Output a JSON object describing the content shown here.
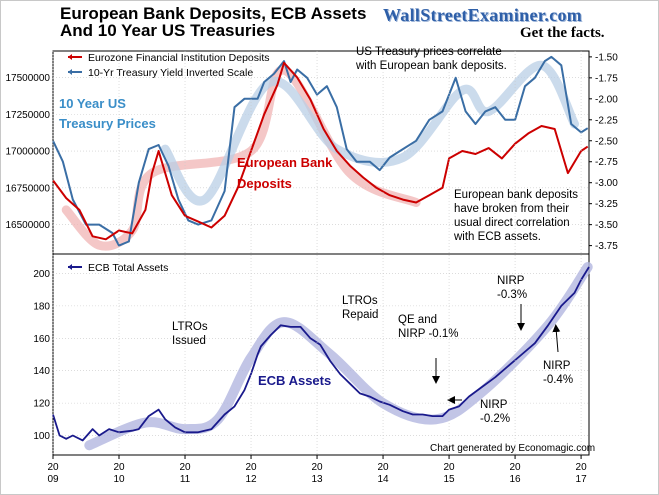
{
  "title_line1": "European Bank Deposits, ECB Assets",
  "title_line2": "And 10 Year US Treasuries",
  "site_name": "WallStreetExaminer.com",
  "tagline": "Get the facts.",
  "footer": "Chart generated by Economagic.com",
  "colors": {
    "deposits": "#cc0000",
    "deposits_trend": "#f0b4b4",
    "treasury": "#3a6ea5",
    "treasury_trend": "#b9cfe6",
    "ecb": "#1a1a8c",
    "ecb_trend": "#b3b6e0",
    "grid": "#c8c8c8"
  },
  "chart_data": [
    {
      "type": "line",
      "series": [
        {
          "name": "Eurozone Financial Institution Deposits",
          "axis": "left",
          "points": [
            [
              2009.0,
              16800000
            ],
            [
              2009.2,
              16680000
            ],
            [
              2009.4,
              16600000
            ],
            [
              2009.6,
              16420000
            ],
            [
              2009.8,
              16400000
            ],
            [
              2010.0,
              16460000
            ],
            [
              2010.2,
              16440000
            ],
            [
              2010.4,
              16600000
            ],
            [
              2010.5,
              16850000
            ],
            [
              2010.6,
              17000000
            ],
            [
              2010.8,
              16700000
            ],
            [
              2011.0,
              16560000
            ],
            [
              2011.2,
              16520000
            ],
            [
              2011.4,
              16480000
            ],
            [
              2011.6,
              16560000
            ],
            [
              2011.8,
              16750000
            ],
            [
              2012.0,
              17000000
            ],
            [
              2012.2,
              17250000
            ],
            [
              2012.4,
              17450000
            ],
            [
              2012.5,
              17600000
            ],
            [
              2012.7,
              17500000
            ],
            [
              2012.9,
              17350000
            ],
            [
              2013.1,
              17150000
            ],
            [
              2013.3,
              17000000
            ],
            [
              2013.5,
              16900000
            ],
            [
              2013.7,
              16820000
            ],
            [
              2013.9,
              16750000
            ],
            [
              2014.1,
              16700000
            ],
            [
              2014.3,
              16670000
            ],
            [
              2014.5,
              16650000
            ],
            [
              2014.7,
              16700000
            ],
            [
              2014.9,
              16750000
            ],
            [
              2015.0,
              16950000
            ],
            [
              2015.2,
              17000000
            ],
            [
              2015.4,
              16980000
            ],
            [
              2015.6,
              17020000
            ],
            [
              2015.8,
              16950000
            ],
            [
              2016.0,
              17050000
            ],
            [
              2016.2,
              17120000
            ],
            [
              2016.4,
              17170000
            ],
            [
              2016.6,
              17150000
            ],
            [
              2016.8,
              16850000
            ],
            [
              2017.0,
              17000000
            ],
            [
              2017.1,
              17030000
            ]
          ],
          "trend": [
            [
              2009.2,
              16600000
            ],
            [
              2009.7,
              16360000
            ],
            [
              2010.2,
              16460000
            ],
            [
              2010.5,
              16850000
            ],
            [
              2012.0,
              17000000
            ],
            [
              2012.5,
              17550000
            ],
            [
              2013.5,
              16850000
            ],
            [
              2014.5,
              16650000
            ]
          ]
        },
        {
          "name": "10-Yr Treasury Yield Inverted Scale",
          "axis": "right",
          "points": [
            [
              2009.0,
              -2.5
            ],
            [
              2009.15,
              -2.75
            ],
            [
              2009.3,
              -3.2
            ],
            [
              2009.5,
              -3.5
            ],
            [
              2009.7,
              -3.5
            ],
            [
              2009.9,
              -3.6
            ],
            [
              2010.0,
              -3.75
            ],
            [
              2010.15,
              -3.7
            ],
            [
              2010.3,
              -3.0
            ],
            [
              2010.45,
              -2.6
            ],
            [
              2010.6,
              -2.55
            ],
            [
              2010.75,
              -2.8
            ],
            [
              2010.9,
              -3.2
            ],
            [
              2011.05,
              -3.45
            ],
            [
              2011.2,
              -3.5
            ],
            [
              2011.4,
              -3.45
            ],
            [
              2011.6,
              -3.1
            ],
            [
              2011.75,
              -2.1
            ],
            [
              2011.9,
              -2.0
            ],
            [
              2012.1,
              -2.0
            ],
            [
              2012.2,
              -1.8
            ],
            [
              2012.35,
              -1.7
            ],
            [
              2012.5,
              -1.55
            ],
            [
              2012.6,
              -1.8
            ],
            [
              2012.7,
              -1.65
            ],
            [
              2012.85,
              -1.75
            ],
            [
              2013.0,
              -1.95
            ],
            [
              2013.15,
              -1.85
            ],
            [
              2013.3,
              -2.1
            ],
            [
              2013.45,
              -2.6
            ],
            [
              2013.6,
              -2.75
            ],
            [
              2013.8,
              -2.75
            ],
            [
              2013.95,
              -2.85
            ],
            [
              2014.1,
              -2.7
            ],
            [
              2014.3,
              -2.6
            ],
            [
              2014.5,
              -2.5
            ],
            [
              2014.7,
              -2.25
            ],
            [
              2014.9,
              -2.15
            ],
            [
              2015.0,
              -1.95
            ],
            [
              2015.1,
              -1.75
            ],
            [
              2015.25,
              -2.15
            ],
            [
              2015.4,
              -2.3
            ],
            [
              2015.55,
              -2.15
            ],
            [
              2015.7,
              -2.1
            ],
            [
              2015.85,
              -2.25
            ],
            [
              2016.0,
              -2.25
            ],
            [
              2016.15,
              -1.85
            ],
            [
              2016.3,
              -1.75
            ],
            [
              2016.45,
              -1.55
            ],
            [
              2016.55,
              -1.5
            ],
            [
              2016.7,
              -1.6
            ],
            [
              2016.85,
              -2.3
            ],
            [
              2017.0,
              -2.4
            ],
            [
              2017.1,
              -2.35
            ]
          ],
          "trend": [
            [
              2010.7,
              -2.6
            ],
            [
              2011.3,
              -3.2
            ],
            [
              2012.3,
              -1.8
            ],
            [
              2013.3,
              -2.6
            ],
            [
              2014.3,
              -2.7
            ],
            [
              2015.2,
              -1.9
            ],
            [
              2015.6,
              -2.15
            ],
            [
              2016.4,
              -1.6
            ],
            [
              2016.9,
              -2.3
            ]
          ]
        }
      ],
      "y_left_ticks": [
        "16500000",
        "16750000",
        "17000000",
        "17250000",
        "17500000"
      ],
      "y_left_range": [
        16300000,
        17680000
      ],
      "y_right_ticks": [
        "-1.50",
        "-1.75",
        "-2.00",
        "-2.25",
        "-2.50",
        "-2.75",
        "-3.00",
        "-3.25",
        "-3.50",
        "-3.75"
      ],
      "y_right_range": [
        -3.85,
        -1.43
      ],
      "legend": "top-left"
    },
    {
      "type": "line",
      "series": [
        {
          "name": "ECB Total Assets",
          "axis": "left",
          "points": [
            [
              2009.0,
              113
            ],
            [
              2009.1,
              100
            ],
            [
              2009.2,
              98
            ],
            [
              2009.3,
              100
            ],
            [
              2009.45,
              97
            ],
            [
              2009.6,
              104
            ],
            [
              2009.7,
              100
            ],
            [
              2009.85,
              104
            ],
            [
              2010.0,
              102
            ],
            [
              2010.2,
              103
            ],
            [
              2010.3,
              104
            ],
            [
              2010.45,
              112
            ],
            [
              2010.6,
              116
            ],
            [
              2010.7,
              110
            ],
            [
              2010.85,
              105
            ],
            [
              2011.0,
              102
            ],
            [
              2011.2,
              102
            ],
            [
              2011.4,
              104
            ],
            [
              2011.6,
              113
            ],
            [
              2011.75,
              118
            ],
            [
              2011.9,
              128
            ],
            [
              2012.0,
              138
            ],
            [
              2012.1,
              150
            ],
            [
              2012.15,
              155
            ],
            [
              2012.3,
              162
            ],
            [
              2012.45,
              168
            ],
            [
              2012.6,
              167
            ],
            [
              2012.75,
              167
            ],
            [
              2012.9,
              160
            ],
            [
              2013.05,
              156
            ],
            [
              2013.2,
              146
            ],
            [
              2013.35,
              138
            ],
            [
              2013.5,
              132
            ],
            [
              2013.65,
              126
            ],
            [
              2013.8,
              124
            ],
            [
              2013.95,
              121
            ],
            [
              2014.1,
              119
            ],
            [
              2014.3,
              115
            ],
            [
              2014.45,
              113
            ],
            [
              2014.6,
              113
            ],
            [
              2014.75,
              112
            ],
            [
              2014.9,
              112
            ],
            [
              2015.0,
              116
            ],
            [
              2015.15,
              118
            ],
            [
              2015.3,
              124
            ],
            [
              2015.5,
              130
            ],
            [
              2015.7,
              136
            ],
            [
              2015.9,
              143
            ],
            [
              2016.1,
              150
            ],
            [
              2016.3,
              157
            ],
            [
              2016.5,
              168
            ],
            [
              2016.7,
              180
            ],
            [
              2016.9,
              188
            ],
            [
              2017.0,
              196
            ],
            [
              2017.12,
              204
            ]
          ],
          "trend": [
            [
              2009.55,
              94
            ],
            [
              2010.4,
              108
            ],
            [
              2011.0,
              104
            ],
            [
              2011.5,
              110
            ],
            [
              2012.0,
              148
            ],
            [
              2012.5,
              170
            ],
            [
              2013.2,
              150
            ],
            [
              2014.0,
              120
            ],
            [
              2014.8,
              110
            ],
            [
              2015.5,
              127
            ],
            [
              2016.5,
              168
            ],
            [
              2017.1,
              204
            ]
          ]
        }
      ],
      "y_ticks": [
        "100",
        "120",
        "140",
        "160",
        "180",
        "200"
      ],
      "y_range": [
        88,
        212
      ],
      "legend": "top-left"
    }
  ],
  "x_axis": {
    "min": 2009,
    "max": 2017.12,
    "ticks": [
      {
        "value": 2009,
        "l1": "20",
        "l2": "09"
      },
      {
        "value": 2010,
        "l1": "20",
        "l2": "10"
      },
      {
        "value": 2011,
        "l1": "20",
        "l2": "11"
      },
      {
        "value": 2012,
        "l1": "20",
        "l2": "12"
      },
      {
        "value": 2013,
        "l1": "20",
        "l2": "13"
      },
      {
        "value": 2014,
        "l1": "20",
        "l2": "14"
      },
      {
        "value": 2015,
        "l1": "20",
        "l2": "15"
      },
      {
        "value": 2016,
        "l1": "20",
        "l2": "16"
      },
      {
        "value": 2017,
        "l1": "20",
        "l2": "17"
      }
    ]
  },
  "annotations": {
    "us_treasury_note_1": "US Treasury prices correlate",
    "us_treasury_note_2": "with European bank deposits.",
    "treasury_prices_1": "10 Year US",
    "treasury_prices_2": "Treasury Prices",
    "european_bank_1": "European Bank",
    "european_bank_2": "Deposits",
    "broken_1": "European bank deposits",
    "broken_2": "have  broken from their",
    "broken_3": "usual direct correlation",
    "broken_4": "with ECB assets.",
    "ltros_issued_1": "LTROs",
    "ltros_issued_2": "Issued",
    "ltros_repaid_1": "LTROs",
    "ltros_repaid_2": "Repaid",
    "qe_1": "QE and",
    "qe_2": "NIRP -0.1%",
    "nirp_02_1": "NIRP",
    "nirp_02_2": "-0.2%",
    "nirp_03_1": "NIRP",
    "nirp_03_2": "-0.3%",
    "nirp_04_1": "NIRP",
    "nirp_04_2": "-0.4%",
    "ecb_assets": "ECB Assets"
  }
}
